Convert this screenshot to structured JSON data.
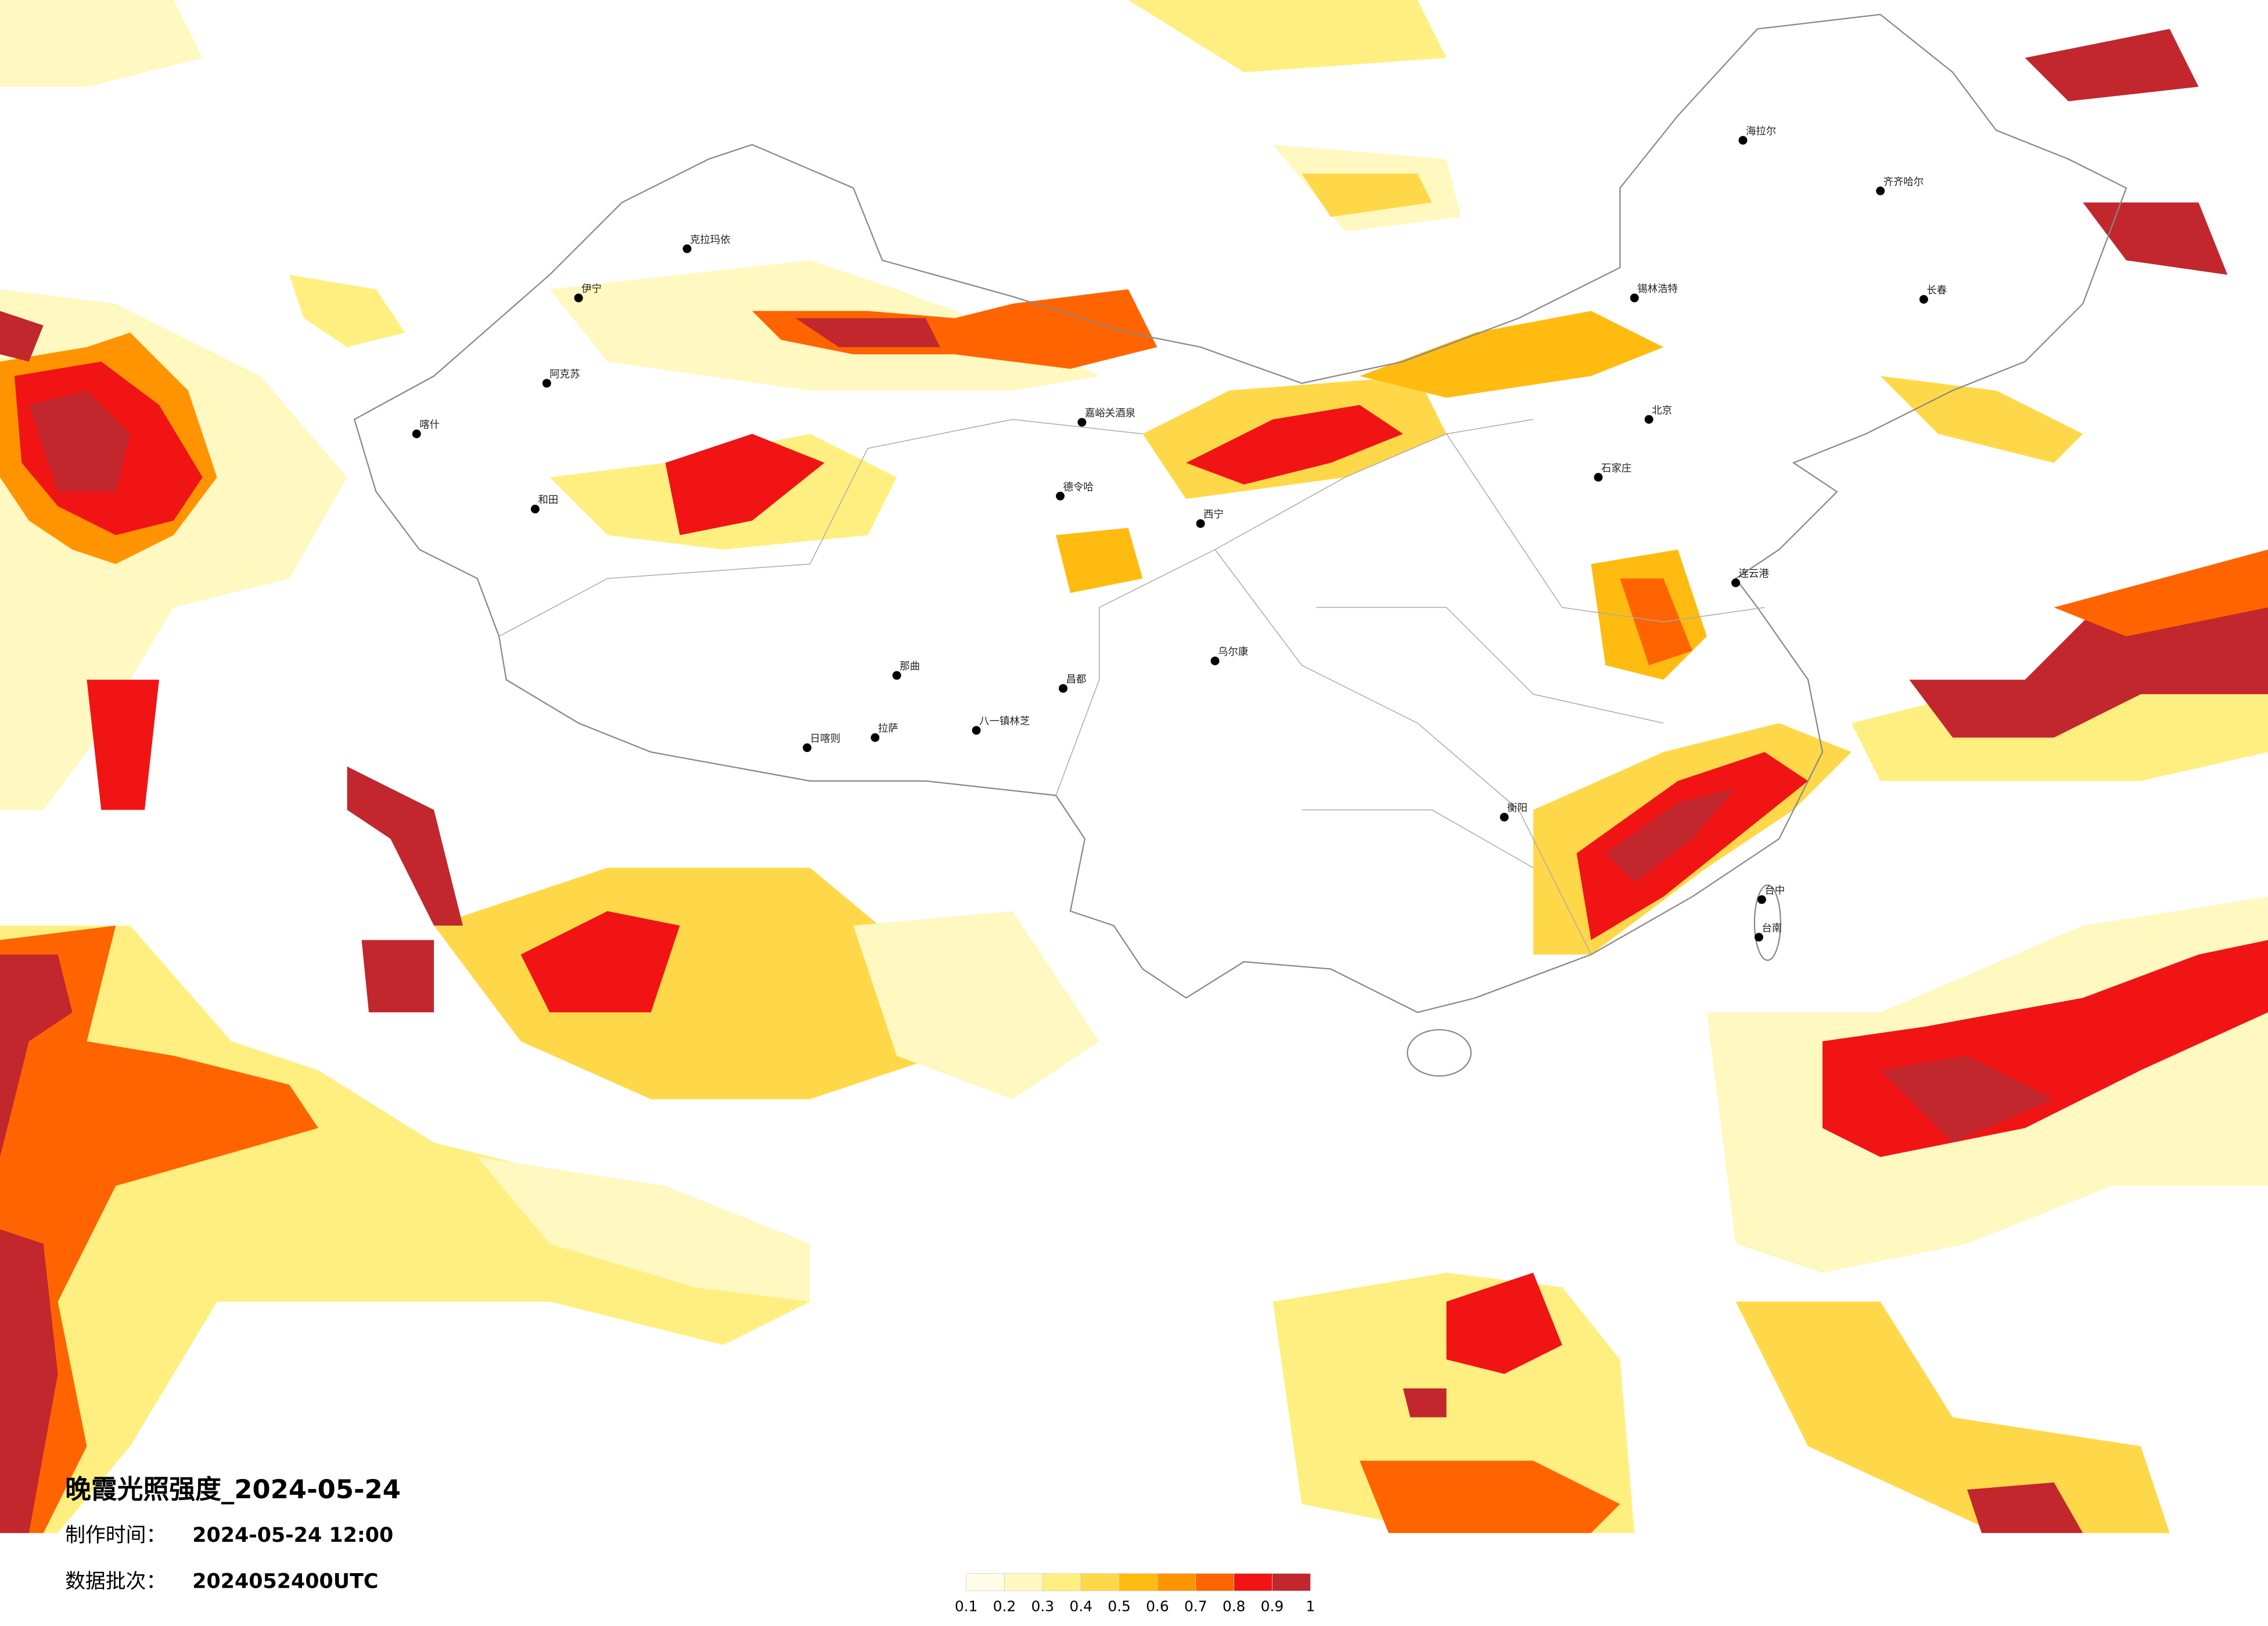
{
  "map": {
    "title": "晚霞光照强度_2024-05-24",
    "production_time": {
      "label": "制作时间：",
      "value": "2024-05-24 12:00"
    },
    "data_batch": {
      "label": "数据批次：",
      "value": "2024052400UTC"
    },
    "legend": {
      "labels": [
        "0.1",
        "0.2",
        "0.3",
        "0.4",
        "0.5",
        "0.6",
        "0.7",
        "0.8",
        "0.9",
        "1"
      ],
      "colors": [
        "#fffde8",
        "#fff8c0",
        "#ffef80",
        "#ffd84a",
        "#ffbb10",
        "#ff9400",
        "#ff6400",
        "#f01414",
        "#c1272d"
      ]
    },
    "cities": [
      {
        "name": "克拉玛依"
      },
      {
        "name": "伊宁"
      },
      {
        "name": "阿克苏"
      },
      {
        "name": "喀什"
      },
      {
        "name": "和田"
      },
      {
        "name": "海拉尔"
      },
      {
        "name": "齐齐哈尔"
      },
      {
        "name": "长春"
      },
      {
        "name": "锡林浩特"
      },
      {
        "name": "北京"
      },
      {
        "name": "石家庄"
      },
      {
        "name": "西宁"
      },
      {
        "name": "那曲"
      },
      {
        "name": "日喀则"
      },
      {
        "name": "拉萨"
      },
      {
        "name": "八一镇林芝"
      },
      {
        "name": "昌都"
      },
      {
        "name": "乌尔康"
      },
      {
        "name": "嘉峪关酒泉"
      },
      {
        "name": "德令哈"
      },
      {
        "name": "台中"
      },
      {
        "name": "台南"
      },
      {
        "name": "连云港"
      },
      {
        "name": "衡阳"
      }
    ]
  }
}
